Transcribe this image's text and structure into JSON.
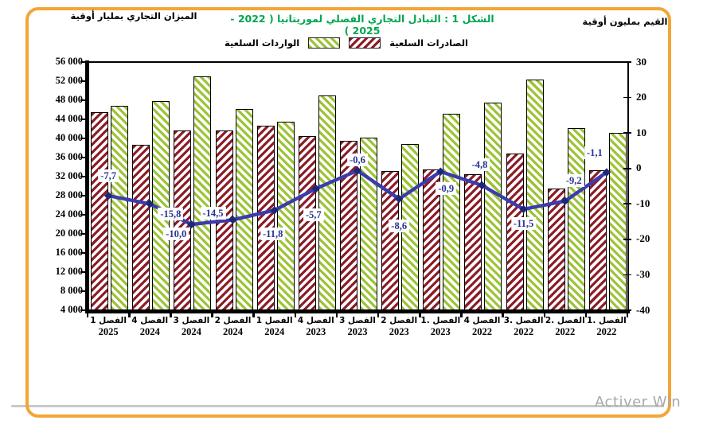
{
  "header": {
    "left_axis_title": "الميزان التجاري بمليار أوقية",
    "title": "الشكل 1 : التبادل التجاري الفصلي لموريتانيا ( 2022 -  2025 )",
    "right_axis_title": "القيم بمليون أوقية"
  },
  "legend": {
    "imports_label": "الواردات السلعية",
    "exports_label": "الصادرات السلعية"
  },
  "colors": {
    "exports_stripe": "#8C1C28",
    "imports_stripe": "#9CC335",
    "line": "#3B3CAC",
    "marker": "#1C2878",
    "title_green": "#00A651",
    "card_border_orange": "#F2A637",
    "label_blue": "#27338F"
  },
  "watermark": "Activer Win",
  "chart_data": {
    "type": "bar+line",
    "title": "الشكل 1 : التبادل التجاري الفصلي لموريتانيا ( 2022 - 2025 )",
    "categories": [
      {
        "q": "الفصل 1",
        "yr": "2025"
      },
      {
        "q": "الفصل 4",
        "yr": "2024"
      },
      {
        "q": "الفصل 3",
        "yr": "2024"
      },
      {
        "q": "الفصل 2",
        "yr": "2024"
      },
      {
        "q": "الفصل 1",
        "yr": "2024"
      },
      {
        "q": "الفصل 4",
        "yr": "2023"
      },
      {
        "q": "الفصل 3",
        "yr": "2023"
      },
      {
        "q": "الفصل 2",
        "yr": "2023"
      },
      {
        "q": "الفصل .1",
        "yr": "2023"
      },
      {
        "q": "الفصل 4",
        "yr": "2022"
      },
      {
        "q": "الفصل .3",
        "yr": "2022"
      },
      {
        "q": "الفصل .2",
        "yr": "2022"
      },
      {
        "q": "الفصل .1",
        "yr": "2022"
      }
    ],
    "series": [
      {
        "name": "الصادرات السلعية",
        "type": "bar",
        "axis": "left",
        "values": [
          45500,
          38700,
          41600,
          41600,
          42700,
          40500,
          39500,
          33100,
          33500,
          32500,
          36800,
          29500,
          33400
        ]
      },
      {
        "name": "الواردات السلعية",
        "type": "bar",
        "axis": "left",
        "values": [
          46800,
          47800,
          53000,
          46200,
          43500,
          49000,
          40200,
          38900,
          45200,
          47500,
          52400,
          42200,
          41200
        ]
      },
      {
        "name": "الميزان التجاري",
        "type": "line",
        "axis": "right",
        "values": [
          -7.7,
          -10.0,
          -15.8,
          -14.5,
          -11.8,
          -5.7,
          -0.6,
          -8.6,
          -0.9,
          -4.8,
          -11.5,
          -9.2,
          -1.1
        ],
        "labels": [
          "-7,7",
          "-10,0",
          "-15,8",
          "-14,5",
          "-11,8",
          "-5,7",
          "-0,6",
          "-8,6",
          "-0,9",
          "-4,8",
          "-11,5",
          "-9,2",
          "-1,1"
        ]
      }
    ],
    "left_axis": {
      "min": 4000,
      "max": 56000,
      "step": 4000,
      "ticks": [
        "56 000",
        "52 000",
        "48 000",
        "44 000",
        "40 000",
        "36 000",
        "32 000",
        "28 000",
        "24 000",
        "20 000",
        "16 000",
        "12 000",
        "8 000",
        "4 000"
      ]
    },
    "right_axis": {
      "min": -40,
      "max": 30,
      "step": 10,
      "ticks": [
        "30",
        "20",
        "10",
        "0",
        "-10",
        "-20",
        "-30",
        "-40"
      ]
    },
    "grid": false,
    "legend_position": "top-center"
  }
}
